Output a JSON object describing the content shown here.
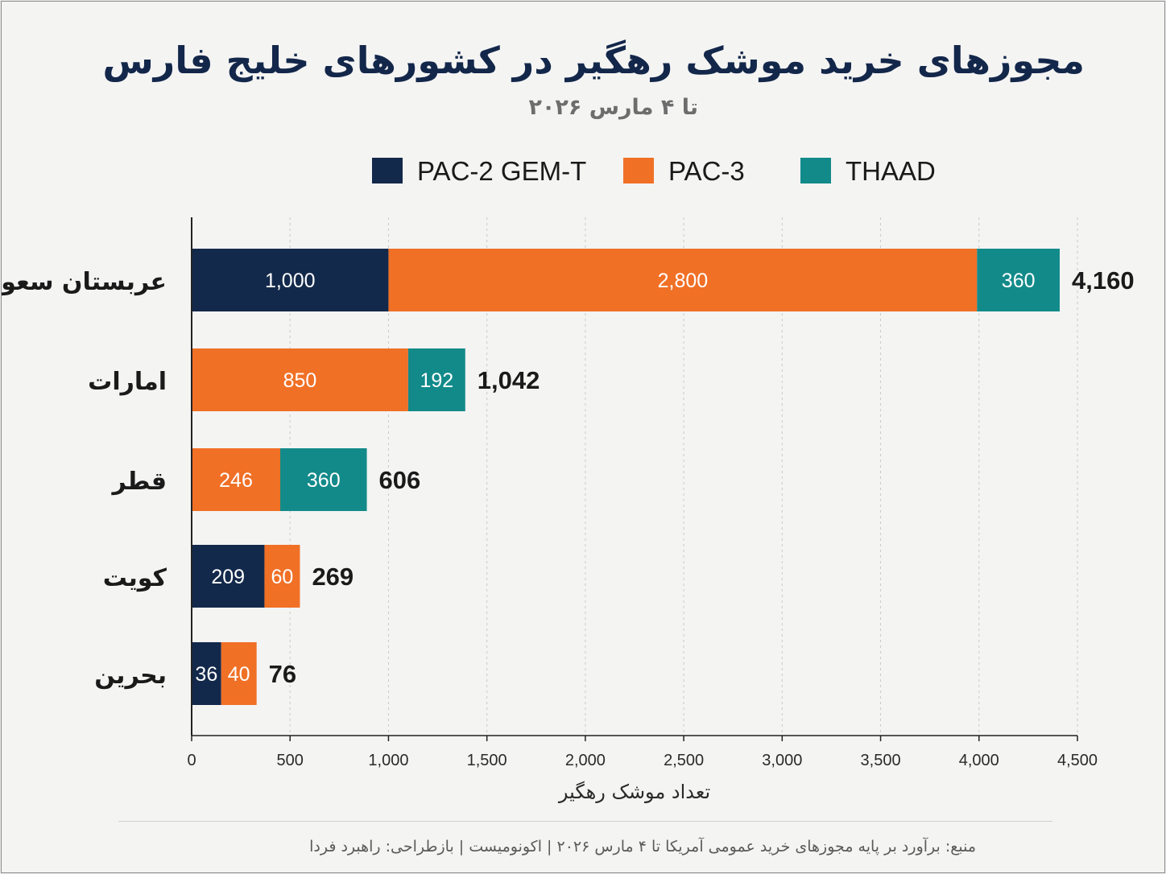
{
  "title": "مجوزهای خرید موشک رهگیر در کشورهای خلیج فارس",
  "subtitle": "تا ۴ مارس ۲۰۲۶",
  "source": "منبع: برآورد بر پایه مجوزهای خرید عمومی آمریکا تا ۴ مارس ۲۰۲۶  |  اکونومیست  |  بازطراحی: راهبرد فردا",
  "colors": {
    "pac2": "#13294b",
    "pac3": "#f07026",
    "thaad": "#138a8a",
    "grid": "#c9c9c9",
    "axis": "#222222"
  },
  "chart_data": {
    "type": "bar",
    "orientation": "horizontal",
    "stacked": true,
    "xlabel": "تعداد موشک رهگیر",
    "xlim": [
      0,
      4500
    ],
    "xticks": [
      0,
      500,
      1000,
      1500,
      2000,
      2500,
      3000,
      3500,
      4000,
      4500
    ],
    "xtick_labels": [
      "0",
      "500",
      "1,000",
      "1,500",
      "2,000",
      "2,500",
      "3,000",
      "3,500",
      "4,000",
      "4,500"
    ],
    "grid": "vertical-dashed",
    "legend": "top",
    "categories": [
      "عربستان سعودی",
      "امارات",
      "قطر",
      "کویت",
      "بحرین"
    ],
    "totals": [
      4160,
      1042,
      606,
      269,
      76
    ],
    "total_labels": [
      "4,160",
      "1,042",
      "606",
      "269",
      "76"
    ],
    "series": [
      {
        "name": "PAC-2 GEM-T",
        "color": "#13294b",
        "values": [
          1000,
          0,
          0,
          209,
          36
        ],
        "display_values": [
          1000,
          0,
          0,
          370,
          150
        ],
        "labels": [
          "1,000",
          "",
          "",
          "209",
          "36"
        ]
      },
      {
        "name": "PAC-3",
        "color": "#f07026",
        "values": [
          2800,
          850,
          246,
          60,
          40
        ],
        "display_values": [
          2990,
          1100,
          450,
          180,
          180
        ],
        "labels": [
          "2,800",
          "850",
          "246",
          "60",
          "40"
        ]
      },
      {
        "name": "THAAD",
        "color": "#138a8a",
        "values": [
          360,
          192,
          360,
          0,
          0
        ],
        "display_values": [
          420,
          290,
          440,
          0,
          0
        ],
        "labels": [
          "360",
          "192",
          "360",
          "",
          ""
        ]
      }
    ]
  }
}
